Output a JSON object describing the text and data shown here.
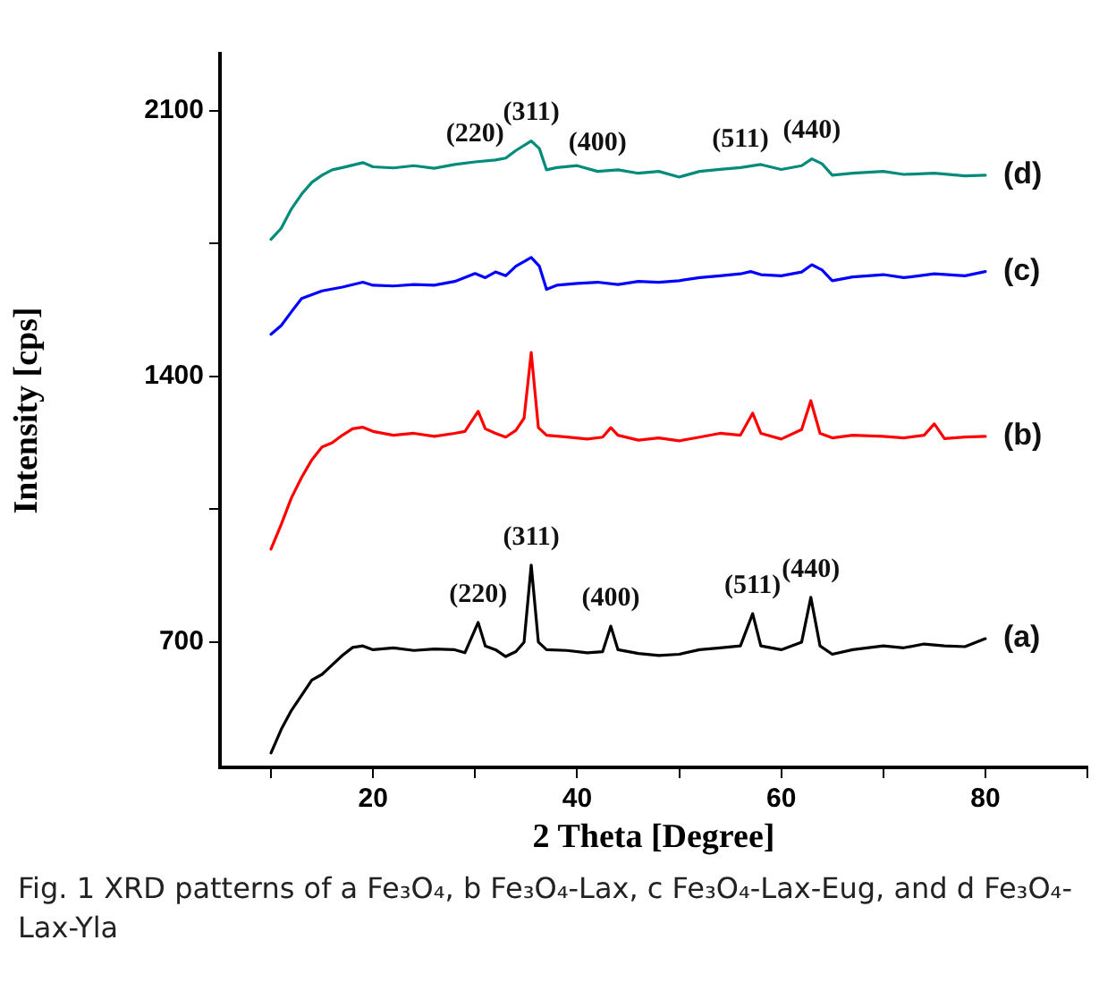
{
  "chart_data": {
    "type": "line",
    "xlabel": "2 Theta [Degree]",
    "ylabel": "Intensity [cps]",
    "xlim": [
      5,
      90
    ],
    "xticks": [
      {
        "value": 10,
        "label": null
      },
      20,
      {
        "value": 30,
        "label": null
      },
      40,
      {
        "value": 50,
        "label": null
      },
      60,
      {
        "value": 70,
        "label": null
      },
      80,
      {
        "value": 90,
        "label": null
      }
    ],
    "ylim": [
      370,
      2250
    ],
    "yticks": [
      700,
      {
        "value": 1050,
        "label": null
      },
      1400,
      {
        "value": 1750,
        "label": null
      },
      2100
    ],
    "grid": false,
    "legend": false,
    "marker": "none",
    "line_style": "solid",
    "series": [
      {
        "name": "(a)",
        "color": "#000000",
        "x": [
          10,
          11,
          12,
          13,
          14,
          15,
          16,
          17,
          18,
          19,
          20,
          22,
          24,
          26,
          28,
          29,
          30.3,
          31,
          32,
          33,
          34,
          34.8,
          35.5,
          36.2,
          37,
          39,
          41,
          42.5,
          43.3,
          44,
          46,
          48,
          50,
          52,
          54,
          56,
          57.2,
          58,
          60,
          62,
          62.9,
          63.8,
          65,
          67,
          70,
          72,
          74,
          76,
          78,
          80
        ],
        "values": [
          408,
          470,
          520,
          560,
          600,
          615,
          640,
          665,
          686,
          690,
          680,
          685,
          678,
          682,
          680,
          672,
          752,
          690,
          680,
          662,
          675,
          700,
          903,
          700,
          680,
          678,
          672,
          675,
          742,
          680,
          670,
          665,
          668,
          680,
          685,
          690,
          775,
          690,
          680,
          700,
          818,
          690,
          668,
          680,
          690,
          685,
          695,
          690,
          688,
          709
        ]
      },
      {
        "name": "(b)",
        "color": "#ff0000",
        "x": [
          10,
          11,
          12,
          13,
          14,
          15,
          16,
          17,
          18,
          19,
          20,
          22,
          24,
          26,
          28,
          29,
          30.3,
          31,
          32,
          33,
          34,
          34.8,
          35.5,
          36.2,
          37,
          39,
          41,
          42.5,
          43.3,
          44,
          46,
          48,
          50,
          52,
          54,
          56,
          57.2,
          58,
          60,
          62,
          62.9,
          63.8,
          65,
          67,
          70,
          72,
          74,
          75,
          76,
          78,
          80
        ],
        "values": [
          945,
          1010,
          1080,
          1134,
          1180,
          1214,
          1225,
          1245,
          1262,
          1266,
          1255,
          1245,
          1250,
          1242,
          1250,
          1255,
          1308,
          1262,
          1250,
          1240,
          1258,
          1290,
          1463,
          1265,
          1245,
          1240,
          1235,
          1240,
          1265,
          1245,
          1232,
          1238,
          1230,
          1240,
          1250,
          1245,
          1303,
          1250,
          1235,
          1260,
          1336,
          1250,
          1238,
          1245,
          1242,
          1238,
          1245,
          1275,
          1236,
          1240,
          1242
        ]
      },
      {
        "name": "(c)",
        "color": "#0000ff",
        "x": [
          10,
          11,
          12,
          13,
          14,
          15,
          17,
          19,
          20,
          22,
          24,
          26,
          28,
          30,
          31,
          32,
          33,
          34,
          35.5,
          36.3,
          37,
          38,
          40,
          42,
          44,
          46,
          48,
          50,
          52,
          54,
          56,
          57,
          58,
          60,
          62,
          63,
          64,
          65,
          67,
          70,
          72,
          75,
          78,
          80
        ],
        "values": [
          1511,
          1534,
          1570,
          1605,
          1615,
          1625,
          1635,
          1648,
          1640,
          1638,
          1642,
          1640,
          1650,
          1671,
          1660,
          1675,
          1665,
          1690,
          1713,
          1690,
          1629,
          1640,
          1645,
          1648,
          1642,
          1650,
          1648,
          1652,
          1660,
          1665,
          1670,
          1676,
          1668,
          1665,
          1675,
          1694,
          1680,
          1652,
          1662,
          1668,
          1660,
          1670,
          1665,
          1676
        ]
      },
      {
        "name": "(d)",
        "color": "#008b7a",
        "x": [
          10,
          11,
          12,
          13,
          14,
          15,
          16,
          17,
          19,
          20,
          22,
          24,
          26,
          28,
          30,
          32,
          33,
          34,
          35.5,
          36.3,
          37,
          38,
          40,
          42,
          44,
          46,
          48,
          50,
          52,
          54,
          56,
          58,
          60,
          62,
          63,
          64,
          65,
          67,
          70,
          72,
          75,
          78,
          80
        ],
        "values": [
          1761,
          1790,
          1841,
          1880,
          1911,
          1930,
          1944,
          1950,
          1963,
          1952,
          1949,
          1955,
          1948,
          1958,
          1965,
          1970,
          1975,
          1995,
          2020,
          2000,
          1944,
          1950,
          1955,
          1940,
          1944,
          1935,
          1940,
          1925,
          1940,
          1945,
          1950,
          1958,
          1945,
          1955,
          1973,
          1960,
          1930,
          1935,
          1940,
          1932,
          1935,
          1928,
          1930
        ]
      }
    ],
    "annotations": [
      {
        "text": "(220)",
        "x": 30.3,
        "y": 752
      },
      {
        "text": "(311)",
        "x": 35.5,
        "y": 903
      },
      {
        "text": "(400)",
        "x": 43.3,
        "y": 742
      },
      {
        "text": "(511)",
        "x": 57.2,
        "y": 775
      },
      {
        "text": "(440)",
        "x": 62.9,
        "y": 818
      },
      {
        "text": "(220)",
        "x": 30,
        "y": 1965
      },
      {
        "text": "(311)",
        "x": 35.5,
        "y": 2020
      },
      {
        "text": "(400)",
        "x": 42,
        "y": 1940
      },
      {
        "text": "(511)",
        "x": 56,
        "y": 1950
      },
      {
        "text": "(440)",
        "x": 63,
        "y": 1973
      },
      "Fig. 1 XRD patterns of a Fe₃O₄, b Fe₃O₄-Lax, c Fe₃O₄-Lax-Eug, and d Fe₃O₄-Lax-Yla"
    ]
  }
}
